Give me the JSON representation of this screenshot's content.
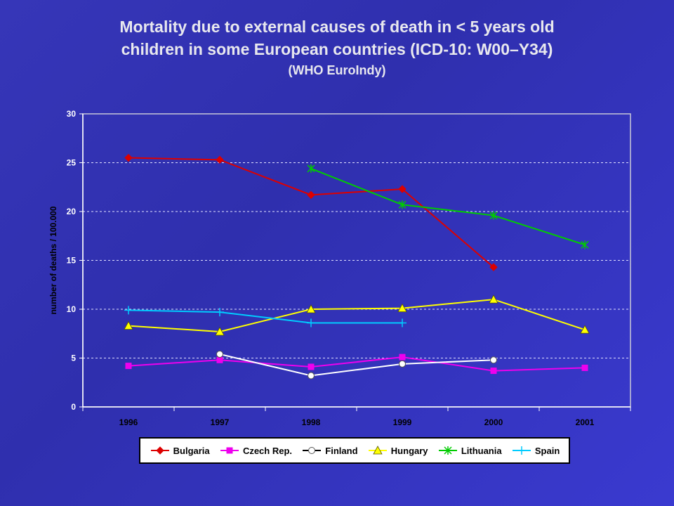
{
  "title": {
    "line1": "Mortality due to external causes of death in < 5 years old",
    "line2": "children in some European countries (ICD-10: W00–Y34)",
    "line3": "(WHO EuroIndy)"
  },
  "chart_data": {
    "type": "line",
    "ylabel": "number of deaths / 100.000",
    "xlabel": "",
    "ylim": [
      0,
      30
    ],
    "yticks": [
      0,
      5,
      10,
      15,
      20,
      25,
      30
    ],
    "categories": [
      "1996",
      "1997",
      "1998",
      "1999",
      "2000",
      "2001"
    ],
    "grid": "horizontal dashed",
    "legend_position": "bottom",
    "series": [
      {
        "name": "Bulgaria",
        "color": "#dd0000",
        "marker": "diamond",
        "values": [
          25.5,
          25.3,
          21.7,
          22.3,
          14.3,
          null
        ]
      },
      {
        "name": "Czech Rep.",
        "color": "#ee00ee",
        "marker": "square",
        "values": [
          4.2,
          4.8,
          4.1,
          5.1,
          3.7,
          4.0
        ]
      },
      {
        "name": "Finland",
        "color": "#ffffff",
        "marker": "circle",
        "values": [
          null,
          5.4,
          3.2,
          4.4,
          4.8,
          null
        ]
      },
      {
        "name": "Hungary",
        "color": "#ffff00",
        "marker": "triangle",
        "values": [
          8.3,
          7.7,
          10.0,
          10.1,
          11.0,
          7.9
        ]
      },
      {
        "name": "Lithuania",
        "color": "#00cc00",
        "marker": "star",
        "values": [
          null,
          null,
          24.4,
          20.7,
          19.6,
          16.6
        ]
      },
      {
        "name": "Spain",
        "color": "#00ccff",
        "marker": "plus",
        "values": [
          9.9,
          9.7,
          8.6,
          8.6,
          null,
          null
        ]
      }
    ]
  }
}
